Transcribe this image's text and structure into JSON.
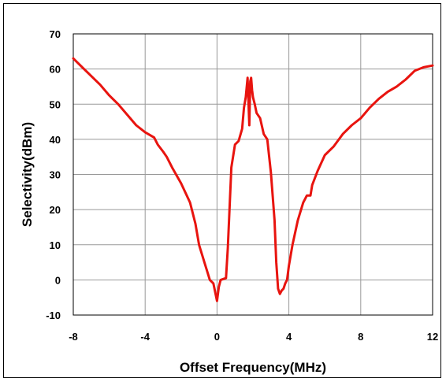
{
  "chart_data": {
    "type": "line",
    "title": "",
    "xlabel": "Offset Frequency(MHz)",
    "ylabel": "Selectivity(dBm)",
    "xlim": [
      -8,
      12
    ],
    "ylim": [
      -10,
      70
    ],
    "xticks": [
      -8,
      -4,
      0,
      4,
      8,
      12
    ],
    "yticks": [
      -10,
      0,
      10,
      20,
      30,
      40,
      50,
      60,
      70
    ],
    "xtick_labels": [
      "-8",
      "-4",
      "0",
      "4",
      "8",
      "12"
    ],
    "ytick_labels": [
      "-10",
      "0",
      "10",
      "20",
      "30",
      "40",
      "50",
      "60",
      "70"
    ],
    "grid": true,
    "legend": "none",
    "series": [
      {
        "color": "#e8140f",
        "x": [
          -8,
          -7.5,
          -7,
          -6.5,
          -6,
          -5.5,
          -5,
          -4.5,
          -4,
          -3.5,
          -3.3,
          -3,
          -2.8,
          -2.5,
          -2,
          -1.5,
          -1.2,
          -1,
          -0.7,
          -0.4,
          -0.2,
          0,
          0.1,
          0.2,
          0.5,
          0.6,
          0.8,
          1.0,
          1.2,
          1.4,
          1.5,
          1.6,
          1.7,
          1.8,
          1.85,
          1.9,
          1.95,
          2.0,
          2.1,
          2.2,
          2.4,
          2.6,
          2.8,
          3.0,
          3.2,
          3.3,
          3.4,
          3.5,
          3.6,
          3.7,
          3.8,
          3.9,
          4.0,
          4.2,
          4.5,
          4.8,
          5.0,
          5.2,
          5.3,
          5.6,
          6.0,
          6.5,
          7.0,
          7.5,
          8.0,
          8.5,
          9.0,
          9.5,
          10.0,
          10.5,
          11.0,
          11.5,
          12.0
        ],
        "y": [
          63,
          60.5,
          58,
          55.5,
          52.5,
          50,
          47,
          44,
          42,
          40.5,
          38.5,
          36.5,
          35,
          32,
          27.5,
          22,
          16,
          10,
          5,
          0,
          -1,
          -6,
          -2,
          0,
          0.5,
          9,
          32,
          38.5,
          39.5,
          43,
          49,
          52,
          57.5,
          44,
          56.5,
          57.5,
          54,
          52,
          50,
          47.5,
          46,
          41.5,
          40,
          30.5,
          17,
          5,
          -2.5,
          -4,
          -3,
          -2.5,
          -1,
          0,
          4,
          10,
          17,
          22,
          24,
          24,
          27,
          31,
          35.5,
          38,
          41.5,
          44,
          46,
          49,
          51.5,
          53.5,
          55,
          57,
          59.5,
          60.5,
          61
        ]
      }
    ]
  }
}
